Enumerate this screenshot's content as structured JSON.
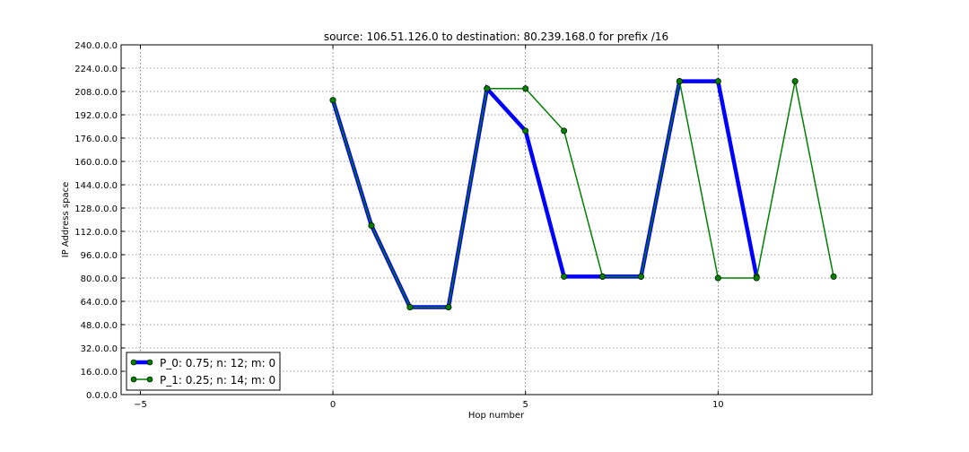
{
  "chart_data": {
    "type": "line",
    "title": "source: 106.51.126.0 to destination: 80.239.168.0 for prefix /16",
    "xlabel": "Hop number",
    "ylabel": "IP Address space",
    "xlim": [
      -5.5,
      14
    ],
    "ylim": [
      0,
      240
    ],
    "x_ticks": [
      -5,
      0,
      5,
      10
    ],
    "x_tick_labels": [
      "−5",
      "0",
      "5",
      "10"
    ],
    "y_ticks": [
      0,
      16,
      32,
      48,
      64,
      80,
      96,
      112,
      128,
      144,
      160,
      176,
      192,
      208,
      224,
      240
    ],
    "y_tick_labels": [
      "0.0.0.0",
      "16.0.0.0",
      "32.0.0.0",
      "48.0.0.0",
      "64.0.0.0",
      "80.0.0.0",
      "96.0.0.0",
      "112.0.0.0",
      "128.0.0.0",
      "144.0.0.0",
      "160.0.0.0",
      "176.0.0.0",
      "192.0.0.0",
      "208.0.0.0",
      "224.0.0.0",
      "240.0.0.0"
    ],
    "grid": true,
    "legend_position": "bottom-left",
    "series": [
      {
        "name": "P_0: 0.75; n: 12; m: 0",
        "color": "#0000ff",
        "line_width": "thick",
        "x": [
          0,
          1,
          2,
          3,
          4,
          5,
          6,
          7,
          8,
          9,
          10,
          11
        ],
        "y": [
          202,
          116,
          60,
          60,
          210,
          181,
          81,
          81,
          81,
          215,
          215,
          81
        ]
      },
      {
        "name": "P_1: 0.25; n: 14; m: 0",
        "color": "#007f00",
        "line_width": "thin",
        "x": [
          0,
          1,
          2,
          3,
          4,
          5,
          6,
          7,
          8,
          9,
          10,
          11,
          12,
          13
        ],
        "y": [
          202,
          116,
          60,
          60,
          210,
          210,
          181,
          81,
          81,
          215,
          80,
          80,
          215,
          81
        ]
      }
    ],
    "marker_color": "#007f00"
  }
}
